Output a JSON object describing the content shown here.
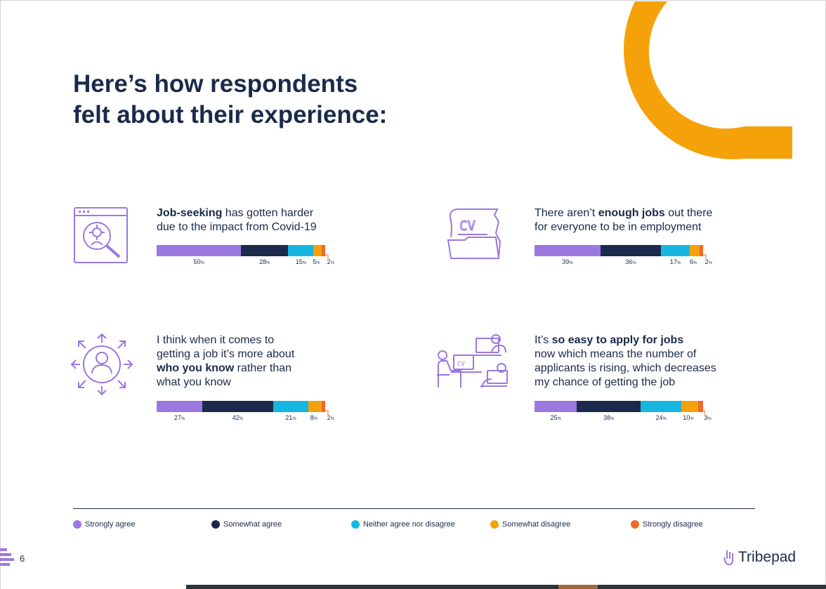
{
  "page": {
    "title_lines": [
      "Here’s how respondents",
      "felt about their experience:"
    ],
    "page_number": "6",
    "brand": "Tribepad"
  },
  "colors": {
    "strongly_agree": "#9b79e0",
    "somewhat_agree": "#1b2a4a",
    "neither": "#16b6e0",
    "somewhat_disagree": "#f5a20a",
    "strongly_disagree": "#ec6a2b",
    "accent_arc": "#f5a20a",
    "icon": "#9b79e0"
  },
  "legend": [
    {
      "label": "Strongly agree",
      "color": "#9b79e0"
    },
    {
      "label": "Somewhat agree",
      "color": "#1b2a4a"
    },
    {
      "label": "Neither agree nor disagree",
      "color": "#16b6e0"
    },
    {
      "label": "Somewhat disagree",
      "color": "#f5a20a"
    },
    {
      "label": "Strongly disagree",
      "color": "#ec6a2b"
    }
  ],
  "chart_data": [
    {
      "type": "bar",
      "orientation": "horizontal-stacked",
      "statement_parts": [
        {
          "text": "Job-seeking",
          "bold": true
        },
        {
          "text": " has gotten harder\ndue to the impact from Covid-19",
          "bold": false
        }
      ],
      "icon": "search-window-icon",
      "series": [
        {
          "name": "Strongly agree",
          "value": 50
        },
        {
          "name": "Somewhat agree",
          "value": 28
        },
        {
          "name": "Neither agree nor disagree",
          "value": 15
        },
        {
          "name": "Somewhat disagree",
          "value": 5
        },
        {
          "name": "Strongly disagree",
          "value": 2
        }
      ],
      "labels": [
        "50",
        "28",
        "15",
        "5",
        "2"
      ],
      "unit": "%"
    },
    {
      "type": "bar",
      "orientation": "horizontal-stacked",
      "statement_parts": [
        {
          "text": "There aren’t ",
          "bold": false
        },
        {
          "text": "enough jobs",
          "bold": true
        },
        {
          "text": " out there\nfor everyone to be in employment",
          "bold": false
        }
      ],
      "icon": "cv-folder-icon",
      "series": [
        {
          "name": "Strongly agree",
          "value": 39
        },
        {
          "name": "Somewhat agree",
          "value": 36
        },
        {
          "name": "Neither agree nor disagree",
          "value": 17
        },
        {
          "name": "Somewhat disagree",
          "value": 6
        },
        {
          "name": "Strongly disagree",
          "value": 2
        }
      ],
      "labels": [
        "39",
        "36",
        "17",
        "6",
        "2"
      ],
      "unit": "%"
    },
    {
      "type": "bar",
      "orientation": "horizontal-stacked",
      "statement_parts": [
        {
          "text": "I think when it comes to\ngetting a job it’s more about\n",
          "bold": false
        },
        {
          "text": "who you know",
          "bold": true
        },
        {
          "text": " rather than\nwhat you know",
          "bold": false
        }
      ],
      "icon": "network-person-icon",
      "series": [
        {
          "name": "Strongly agree",
          "value": 27
        },
        {
          "name": "Somewhat agree",
          "value": 42
        },
        {
          "name": "Neither agree nor disagree",
          "value": 21
        },
        {
          "name": "Somewhat disagree",
          "value": 8
        },
        {
          "name": "Strongly disagree",
          "value": 2
        }
      ],
      "labels": [
        "27",
        "42",
        "21",
        "8",
        "2"
      ],
      "unit": "%"
    },
    {
      "type": "bar",
      "orientation": "horizontal-stacked",
      "statement_parts": [
        {
          "text": "It’s ",
          "bold": false
        },
        {
          "text": "so easy to apply for jobs",
          "bold": true
        },
        {
          "text": "\nnow which means the number of\napplicants is rising, which decreases\nmy chance of getting the job",
          "bold": false
        }
      ],
      "icon": "applicants-computers-icon",
      "series": [
        {
          "name": "Strongly agree",
          "value": 25
        },
        {
          "name": "Somewhat agree",
          "value": 38
        },
        {
          "name": "Neither agree nor disagree",
          "value": 24
        },
        {
          "name": "Somewhat disagree",
          "value": 10
        },
        {
          "name": "Strongly disagree",
          "value": 3
        }
      ],
      "labels": [
        "25",
        "38",
        "24",
        "10",
        "3"
      ],
      "unit": "%"
    }
  ]
}
